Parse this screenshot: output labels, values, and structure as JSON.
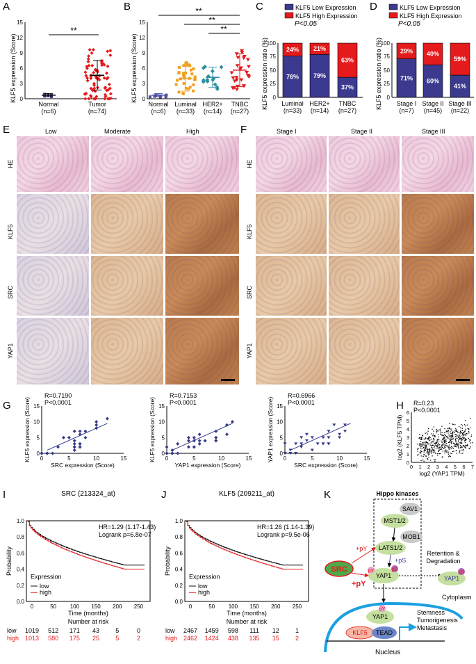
{
  "panels": {
    "A": {
      "letter": "A",
      "ylabel": "KLF5 expression (Score)",
      "yticks": [
        "0",
        "3",
        "6",
        "9",
        "12",
        "15"
      ],
      "groups": [
        {
          "label": "Normal",
          "n": "(n=6)"
        },
        {
          "label": "Tumor",
          "n": "(n=74)"
        }
      ],
      "sig": "**"
    },
    "B": {
      "letter": "B",
      "ylabel": "KLF5 expression (Score)",
      "yticks": [
        "0",
        "3",
        "6",
        "9",
        "12",
        "15"
      ],
      "groups": [
        {
          "label": "Normal",
          "n": "(n=6)"
        },
        {
          "label": "Luminal",
          "n": "(n=33)"
        },
        {
          "label": "HER2+",
          "n": "(n=14)"
        },
        {
          "label": "TNBC",
          "n": "(n=27)"
        }
      ],
      "sig": [
        "**",
        "**",
        "**"
      ]
    },
    "C": {
      "letter": "C",
      "ylabel": "KLF5 expression ratio (%)",
      "legend_low": "KLF5 Low Expression",
      "legend_high": "KLF5 High Expression",
      "pval": "P<0.05",
      "yticks": [
        "0",
        "25",
        "50",
        "75",
        "100"
      ],
      "bars": [
        {
          "label": "Luminal",
          "n": "(n=33)",
          "low": "76%",
          "high": "24%"
        },
        {
          "label": "HER2+",
          "n": "(n=14)",
          "low": "79%",
          "high": "21%"
        },
        {
          "label": "TNBC",
          "n": "(n=27)",
          "low": "37%",
          "high": "63%"
        }
      ]
    },
    "D": {
      "letter": "D",
      "ylabel": "KLF5 expression ratio (%)",
      "legend_low": "KLF5 Low Expression",
      "legend_high": "KLF5 High Expression",
      "pval": "P<0.05",
      "yticks": [
        "0",
        "25",
        "50",
        "75",
        "100"
      ],
      "bars": [
        {
          "label": "Stage I",
          "n": "(n=7)",
          "low": "71%",
          "high": "29%"
        },
        {
          "label": "Stage II",
          "n": "(n=45)",
          "low": "60%",
          "high": "40%"
        },
        {
          "label": "Stage III",
          "n": "(n=22)",
          "low": "41%",
          "high": "59%"
        }
      ]
    },
    "E": {
      "letter": "E",
      "cols": [
        "Low",
        "Moderate",
        "High"
      ],
      "rows": [
        "HE",
        "KLF5",
        "SRC",
        "YAP1"
      ]
    },
    "F": {
      "letter": "F",
      "cols": [
        "Stage I",
        "Stage II",
        "Stage III"
      ],
      "rows": [
        "HE",
        "KLF5",
        "SRC",
        "YAP1"
      ]
    },
    "G": {
      "letter": "G",
      "plots": [
        {
          "r": "R=0.7190",
          "p": "P<0.0001",
          "ylabel": "KLF5 expression (Score)",
          "xlabel": "SRC expression (Score)"
        },
        {
          "r": "R=0.7153",
          "p": "P<0.0001",
          "ylabel": "KLF5 expression (Score)",
          "xlabel": "YAP1 expression (Score)"
        },
        {
          "r": "R=0.6966",
          "p": "P<0.0001",
          "ylabel": "YAP1 expression (Score)",
          "xlabel": "SRC expression (Score)"
        }
      ],
      "ticks": [
        "0",
        "5",
        "10",
        "15"
      ]
    },
    "H": {
      "letter": "H",
      "r": "R=0.23",
      "p": "P<0.0001",
      "ylabel": "log2 (KLF5 TPM)",
      "xlabel": "log2 (YAP1 TPM)",
      "xticks": [
        "0",
        "1",
        "2",
        "3",
        "4",
        "5",
        "6",
        "7"
      ],
      "yticks": [
        "0",
        "1",
        "2",
        "3",
        "4",
        "5",
        "6"
      ]
    },
    "I": {
      "letter": "I",
      "title": "SRC (213324_at)",
      "hr": "HR=1.29 (1.17-1.43)",
      "logrank": "Logrank p=6.8e-07",
      "ylabel": "Probability",
      "xlabel": "Time (months)",
      "yticks": [
        "0.0",
        "0.2",
        "0.4",
        "0.6",
        "0.8",
        "1.0"
      ],
      "xticks": [
        "0",
        "50",
        "100",
        "150",
        "200",
        "250"
      ],
      "legend_title": "Expression",
      "legend_low": "low",
      "legend_high": "high",
      "risk_title": "Number at risk",
      "risk_low": [
        "low",
        "1019",
        "512",
        "171",
        "43",
        "5",
        "0"
      ],
      "risk_high": [
        "high",
        "1013",
        "580",
        "175",
        "25",
        "5",
        "2"
      ]
    },
    "J": {
      "letter": "J",
      "title": "KLF5 (209211_at)",
      "hr": "HR=1.26 (1.14-1.39)",
      "logrank": "Logrank p=9.5e-06",
      "ylabel": "Probability",
      "xlabel": "Time (months)",
      "yticks": [
        "0.0",
        "0.2",
        "0.4",
        "0.6",
        "0.8",
        "1.0"
      ],
      "xticks": [
        "0",
        "50",
        "100",
        "150",
        "200",
        "250"
      ],
      "legend_title": "Expression",
      "legend_low": "low",
      "legend_high": "high",
      "risk_title": "Number at risk",
      "risk_low": [
        "low",
        "2467",
        "1459",
        "598",
        "111",
        "12",
        "1"
      ],
      "risk_high": [
        "high",
        "2462",
        "1424",
        "438",
        "135",
        "15",
        "2"
      ]
    },
    "K": {
      "letter": "K",
      "hippo": "Hippo kinases",
      "sav1": "SAV1",
      "mst": "MST1/2",
      "mob1": "MOB1",
      "lats": "LATS1/2",
      "yap": "YAP1",
      "src": "SRC",
      "py": "+pY",
      "ps": "+pS",
      "py2": "+pY",
      "pY": "pY",
      "pS": "pS",
      "retention": "Retention &",
      "degradation": "Degradation",
      "cytoplasm": "Cytoplasm",
      "nucleus": "Nucleus",
      "klf5": "KLF5",
      "tead": "TEAD",
      "stemness": "Stemness",
      "tumorigenesis": "Tumorigenesis",
      "metastasis": "Metastasis"
    }
  },
  "colors": {
    "low": "#3b3a8f",
    "high": "#e41a1c",
    "scatter": "#343a8a",
    "km_low": "#000000",
    "km_high": "#e41a1c",
    "src": "#4fa84a",
    "yap": "#c5dfa0",
    "tead": "#6b86c8",
    "klf5": "#f6b7a6"
  }
}
